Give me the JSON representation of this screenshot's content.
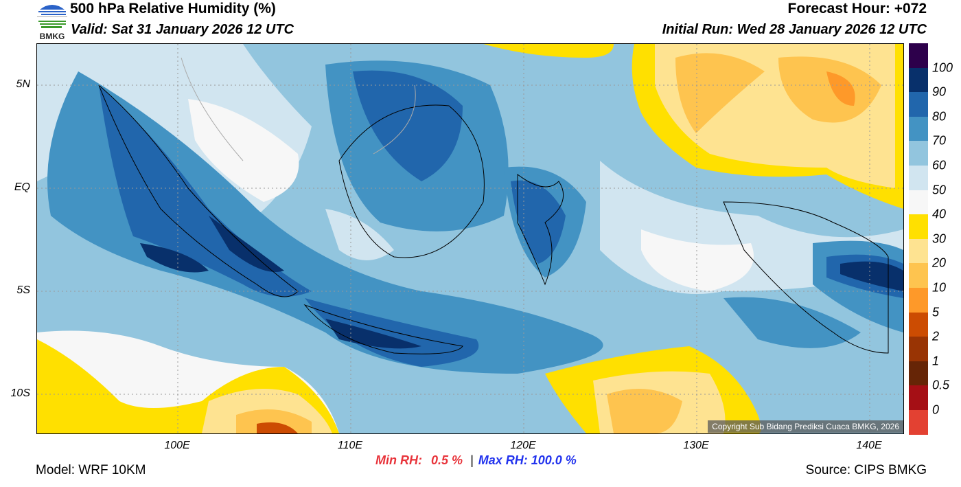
{
  "header": {
    "title": "500 hPa Relative Humidity (%)",
    "valid": "Valid: Sat 31 January 2026 12 UTC",
    "forecast_hour": "Forecast Hour: +072",
    "initial_run": "Initial Run: Wed 28 January 2026 12 UTC",
    "logo_text": "BMKG"
  },
  "map": {
    "lon_ticks": [
      "100E",
      "110E",
      "120E",
      "130E",
      "140E"
    ],
    "lat_ticks": [
      "5N",
      "EQ",
      "5S",
      "10S"
    ],
    "copyright": "Copyright Sub Bidang Prediksi Cuaca BMKG, 2026"
  },
  "colorbar": {
    "labels": [
      "100",
      "90",
      "80",
      "70",
      "60",
      "50",
      "40",
      "30",
      "20",
      "10",
      "5",
      "2",
      "1",
      "0.5",
      "0"
    ],
    "colors": [
      "#2d004b",
      "#08306b",
      "#2166ac",
      "#4393c3",
      "#92c5de",
      "#d1e5f0",
      "#f7f7f7",
      "#ffe000",
      "#fee391",
      "#fec44f",
      "#fe9929",
      "#cc4c02",
      "#993404",
      "#662506",
      "#a50f15",
      "#e34132"
    ]
  },
  "footer": {
    "model": "Model: WRF 10KM",
    "min_rh_label": "Min RH:",
    "min_rh_value": "0.5 %",
    "separator": "|",
    "max_rh": "Max RH: 100.0 %",
    "source": "Source: CIPS BMKG"
  }
}
